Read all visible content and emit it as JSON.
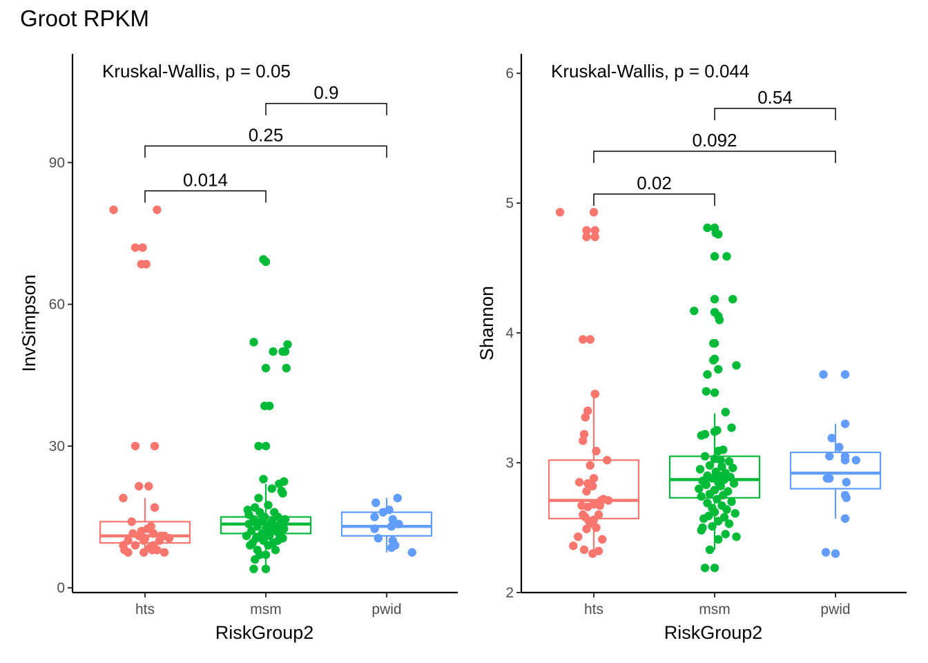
{
  "title": "Groot RPKM",
  "colors": {
    "hts": "#F8766D",
    "msm": "#00BA38",
    "pwid": "#619CFF"
  },
  "chart_data": [
    {
      "type": "box",
      "title": "",
      "xlabel": "RiskGroup2",
      "ylabel": "InvSimpson",
      "categories": [
        "hts",
        "msm",
        "pwid"
      ],
      "ylim": [
        -1,
        113
      ],
      "yticks": [
        0,
        30,
        60,
        90
      ],
      "annotation": "Kruskal-Wallis, p = 0.05",
      "comparisons": [
        {
          "from": "hts",
          "to": "msm",
          "label": "0.014",
          "y": 84
        },
        {
          "from": "hts",
          "to": "pwid",
          "label": "0.25",
          "y": 93.5
        },
        {
          "from": "msm",
          "to": "pwid",
          "label": "0.9",
          "y": 102.5
        }
      ],
      "boxes": [
        {
          "group": "hts",
          "lower_whisker": 7,
          "q1": 9.5,
          "median": 11,
          "q3": 14,
          "upper_whisker": 19
        },
        {
          "group": "msm",
          "lower_whisker": 4,
          "q1": 11.5,
          "median": 13.5,
          "q3": 15,
          "upper_whisker": 22
        },
        {
          "group": "pwid",
          "lower_whisker": 7.5,
          "q1": 11,
          "median": 13,
          "q3": 16,
          "upper_whisker": 19
        }
      ],
      "points": {
        "hts": [
          [
            -0.26,
            80
          ],
          [
            0.1,
            80
          ],
          [
            -0.08,
            72
          ],
          [
            -0.02,
            72
          ],
          [
            -0.03,
            68.5
          ],
          [
            0.01,
            68.5
          ],
          [
            -0.08,
            30
          ],
          [
            0.08,
            30
          ],
          [
            -0.05,
            21.5
          ],
          [
            0.03,
            21.5
          ],
          [
            -0.18,
            19
          ],
          [
            0.08,
            17
          ],
          [
            -0.11,
            14
          ],
          [
            0.05,
            13
          ],
          [
            -0.03,
            12
          ],
          [
            0.07,
            11.5
          ],
          [
            0.16,
            11
          ],
          [
            0.2,
            10.5
          ],
          [
            -0.14,
            10
          ],
          [
            -0.01,
            10
          ],
          [
            0.12,
            10
          ],
          [
            -0.18,
            9
          ],
          [
            0.07,
            9
          ],
          [
            -0.08,
            9
          ],
          [
            0.04,
            8.5
          ],
          [
            -0.17,
            8
          ],
          [
            0.1,
            8
          ],
          [
            -0.14,
            7.5
          ],
          [
            -0.01,
            7.5
          ],
          [
            0.16,
            7.5
          ],
          [
            0.06,
            8
          ],
          [
            -0.05,
            11
          ],
          [
            0.13,
            11
          ],
          [
            0.02,
            12.5
          ],
          [
            -0.1,
            11.5
          ],
          [
            0.0,
            10.5
          ]
        ],
        "msm": [
          [
            -0.02,
            69.5
          ],
          [
            0.0,
            69
          ],
          [
            -0.1,
            52
          ],
          [
            0.18,
            51.5
          ],
          [
            0.16,
            50
          ],
          [
            0.14,
            50
          ],
          [
            0.06,
            50
          ],
          [
            0.17,
            46.5
          ],
          [
            0.0,
            46.5
          ],
          [
            0.03,
            38.5
          ],
          [
            -0.01,
            38.5
          ],
          [
            0.0,
            30
          ],
          [
            -0.06,
            30
          ],
          [
            -0.02,
            23
          ],
          [
            0.11,
            22
          ],
          [
            0.15,
            22.5
          ],
          [
            0.05,
            21
          ],
          [
            0.13,
            20.5
          ],
          [
            0.14,
            20
          ],
          [
            -0.06,
            19
          ],
          [
            -0.09,
            17
          ],
          [
            -0.15,
            16.5
          ],
          [
            0.07,
            16
          ],
          [
            -0.14,
            15.5
          ],
          [
            -0.01,
            15
          ],
          [
            0.1,
            15
          ],
          [
            0.16,
            14.5
          ],
          [
            -0.1,
            14.5
          ],
          [
            -0.04,
            14
          ],
          [
            0.05,
            14
          ],
          [
            0.12,
            13.5
          ],
          [
            -0.14,
            13.5
          ],
          [
            -0.07,
            13
          ],
          [
            0.09,
            13
          ],
          [
            0.0,
            12.5
          ],
          [
            0.15,
            12.5
          ],
          [
            -0.12,
            12
          ],
          [
            0.05,
            12
          ],
          [
            -0.03,
            11.5
          ],
          [
            0.11,
            11.5
          ],
          [
            -0.16,
            11
          ],
          [
            0.03,
            11
          ],
          [
            0.14,
            10.5
          ],
          [
            -0.08,
            10.5
          ],
          [
            -0.02,
            10
          ],
          [
            0.1,
            10
          ],
          [
            -0.11,
            9.5
          ],
          [
            0.06,
            9.5
          ],
          [
            -0.13,
            9
          ],
          [
            0.02,
            9
          ],
          [
            -0.07,
            8
          ],
          [
            0.08,
            8
          ],
          [
            -0.05,
            7
          ],
          [
            0.0,
            7
          ],
          [
            -0.09,
            6
          ],
          [
            -0.1,
            4
          ],
          [
            0.0,
            4
          ],
          [
            0.04,
            13.5
          ],
          [
            -0.05,
            16
          ],
          [
            0.02,
            17.5
          ],
          [
            0.08,
            12
          ],
          [
            -0.02,
            14.5
          ]
        ],
        "pwid": [
          [
            -0.09,
            18
          ],
          [
            0.09,
            19
          ],
          [
            -0.1,
            15
          ],
          [
            -0.03,
            16
          ],
          [
            0.02,
            16.5
          ],
          [
            0.05,
            14.5
          ],
          [
            0.1,
            13.5
          ],
          [
            -0.1,
            12.5
          ],
          [
            0.04,
            13
          ],
          [
            -0.07,
            10.5
          ],
          [
            0.05,
            10
          ],
          [
            0.07,
            9
          ],
          [
            0.04,
            8.5
          ],
          [
            0.21,
            7.5
          ]
        ]
      }
    },
    {
      "type": "box",
      "title": "",
      "xlabel": "RiskGroup2",
      "ylabel": "Shannon",
      "categories": [
        "hts",
        "msm",
        "pwid"
      ],
      "ylim": [
        2.0,
        6.15
      ],
      "yticks": [
        2,
        3,
        4,
        5,
        6
      ],
      "annotation": "Kruskal-Wallis, p = 0.044",
      "comparisons": [
        {
          "from": "hts",
          "to": "msm",
          "label": "0.02",
          "y": 5.07
        },
        {
          "from": "hts",
          "to": "pwid",
          "label": "0.092",
          "y": 5.4
        },
        {
          "from": "msm",
          "to": "pwid",
          "label": "0.54",
          "y": 5.73
        }
      ],
      "boxes": [
        {
          "group": "hts",
          "lower_whisker": 2.33,
          "q1": 2.57,
          "median": 2.71,
          "q3": 3.02,
          "upper_whisker": 3.55
        },
        {
          "group": "msm",
          "lower_whisker": 2.33,
          "q1": 2.73,
          "median": 2.87,
          "q3": 3.05,
          "upper_whisker": 3.38
        },
        {
          "group": "pwid",
          "lower_whisker": 2.57,
          "q1": 2.8,
          "median": 2.92,
          "q3": 3.08,
          "upper_whisker": 3.3
        }
      ],
      "points": {
        "hts": [
          [
            -0.28,
            4.93
          ],
          [
            0.0,
            4.93
          ],
          [
            -0.06,
            4.79
          ],
          [
            0.01,
            4.79
          ],
          [
            -0.06,
            4.74
          ],
          [
            0.01,
            4.74
          ],
          [
            -0.09,
            3.95
          ],
          [
            -0.03,
            3.95
          ],
          [
            0.01,
            3.53
          ],
          [
            -0.05,
            3.4
          ],
          [
            -0.07,
            3.35
          ],
          [
            -0.08,
            3.22
          ],
          [
            0.02,
            3.09
          ],
          [
            -0.09,
            3.17
          ],
          [
            0.11,
            3.02
          ],
          [
            -0.03,
            2.98
          ],
          [
            -0.12,
            2.85
          ],
          [
            0.0,
            2.88
          ],
          [
            -0.05,
            2.84
          ],
          [
            -0.01,
            2.82
          ],
          [
            -0.06,
            2.78
          ],
          [
            0.08,
            2.72
          ],
          [
            0.12,
            2.71
          ],
          [
            0.06,
            2.71
          ],
          [
            -0.1,
            2.67
          ],
          [
            -0.05,
            2.66
          ],
          [
            0.05,
            2.67
          ],
          [
            -0.09,
            2.6
          ],
          [
            0.04,
            2.6
          ],
          [
            -0.07,
            2.58
          ],
          [
            0.0,
            2.56
          ],
          [
            -0.04,
            2.55
          ],
          [
            -0.01,
            2.53
          ],
          [
            0.02,
            2.5
          ],
          [
            -0.06,
            2.49
          ],
          [
            -0.13,
            2.43
          ],
          [
            0.07,
            2.41
          ],
          [
            -0.17,
            2.36
          ],
          [
            -0.08,
            2.33
          ],
          [
            0.04,
            2.32
          ],
          [
            -0.01,
            2.3
          ],
          [
            0.0,
            2.68
          ]
        ],
        "msm": [
          [
            -0.06,
            4.81
          ],
          [
            0.0,
            4.81
          ],
          [
            0.01,
            4.77
          ],
          [
            0.03,
            4.76
          ],
          [
            0.0,
            4.59
          ],
          [
            0.1,
            4.59
          ],
          [
            0.0,
            4.26
          ],
          [
            0.15,
            4.26
          ],
          [
            -0.17,
            4.17
          ],
          [
            0.0,
            4.16
          ],
          [
            0.03,
            4.13
          ],
          [
            0.04,
            4.1
          ],
          [
            -0.01,
            3.92
          ],
          [
            0.0,
            3.92
          ],
          [
            -0.01,
            3.79
          ],
          [
            0.0,
            3.8
          ],
          [
            0.03,
            3.72
          ],
          [
            -0.06,
            3.68
          ],
          [
            -0.07,
            3.55
          ],
          [
            0.0,
            3.54
          ],
          [
            0.18,
            3.75
          ],
          [
            0.09,
            3.39
          ],
          [
            -0.08,
            3.22
          ],
          [
            -0.11,
            3.21
          ],
          [
            0.02,
            3.25
          ],
          [
            0.14,
            3.27
          ],
          [
            0.0,
            3.24
          ],
          [
            0.07,
            3.1
          ],
          [
            0.03,
            3.09
          ],
          [
            -0.08,
            3.05
          ],
          [
            0.0,
            3.03
          ],
          [
            0.05,
            3.02
          ],
          [
            0.12,
            3.01
          ],
          [
            -0.04,
            2.98
          ],
          [
            0.06,
            2.97
          ],
          [
            0.15,
            2.96
          ],
          [
            -0.12,
            2.95
          ],
          [
            0.01,
            2.93
          ],
          [
            0.09,
            2.92
          ],
          [
            -0.06,
            2.9
          ],
          [
            0.04,
            2.9
          ],
          [
            0.13,
            2.89
          ],
          [
            -0.02,
            2.88
          ],
          [
            0.08,
            2.87
          ],
          [
            -0.1,
            2.86
          ],
          [
            0.03,
            2.85
          ],
          [
            0.16,
            2.84
          ],
          [
            -0.07,
            2.83
          ],
          [
            0.05,
            2.82
          ],
          [
            -0.13,
            2.8
          ],
          [
            0.0,
            2.79
          ],
          [
            0.11,
            2.78
          ],
          [
            -0.04,
            2.76
          ],
          [
            0.07,
            2.75
          ],
          [
            -0.11,
            2.74
          ],
          [
            0.02,
            2.72
          ],
          [
            0.14,
            2.7
          ],
          [
            -0.06,
            2.69
          ],
          [
            0.06,
            2.67
          ],
          [
            -0.02,
            2.65
          ],
          [
            0.1,
            2.64
          ],
          [
            0.0,
            2.62
          ],
          [
            0.17,
            2.61
          ],
          [
            -0.05,
            2.59
          ],
          [
            0.08,
            2.58
          ],
          [
            -0.09,
            2.57
          ],
          [
            0.03,
            2.55
          ],
          [
            0.12,
            2.53
          ],
          [
            -0.02,
            2.51
          ],
          [
            -0.1,
            2.5
          ],
          [
            -0.11,
            2.48
          ],
          [
            0.09,
            2.45
          ],
          [
            0.18,
            2.43
          ],
          [
            0.03,
            2.41
          ],
          [
            -0.04,
            2.33
          ],
          [
            -0.08,
            2.19
          ],
          [
            0.0,
            2.19
          ]
        ],
        "pwid": [
          [
            0.08,
            3.68
          ],
          [
            -0.1,
            3.68
          ],
          [
            0.08,
            3.3
          ],
          [
            -0.03,
            3.19
          ],
          [
            0.03,
            3.12
          ],
          [
            -0.05,
            3.05
          ],
          [
            0.08,
            3.05
          ],
          [
            -0.05,
            2.88
          ],
          [
            -0.07,
            2.88
          ],
          [
            0.08,
            3.02
          ],
          [
            0.17,
            3.02
          ],
          [
            0.09,
            2.85
          ],
          [
            0.08,
            2.75
          ],
          [
            0.09,
            2.73
          ],
          [
            0.08,
            2.57
          ],
          [
            -0.08,
            2.31
          ],
          [
            0.0,
            2.3
          ]
        ]
      }
    }
  ]
}
